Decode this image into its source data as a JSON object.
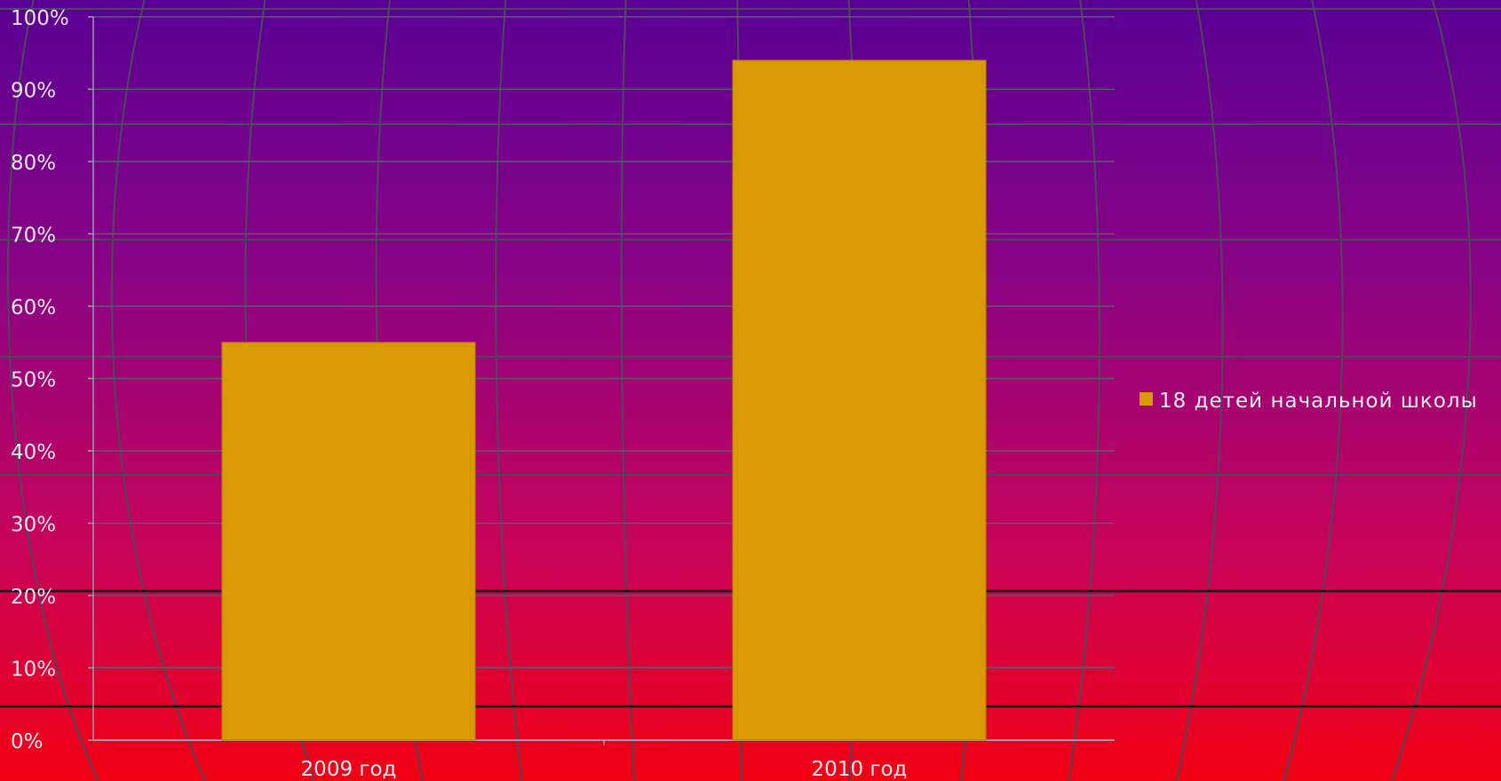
{
  "colors": {
    "bar": "#d99a06",
    "bar_stroke": "#b07a00",
    "background_top": "#5a0095",
    "background_bottom": "#f10012"
  },
  "chart_data": {
    "type": "bar",
    "categories": [
      "2009 год",
      "2010 год"
    ],
    "series": [
      {
        "name": "18 детей начальной школы",
        "values": [
          55,
          94
        ]
      }
    ],
    "ylim": [
      0,
      100
    ],
    "yticks": [
      "0%",
      "10%",
      "20%",
      "30%",
      "40%",
      "50%",
      "60%",
      "70%",
      "80%",
      "90%",
      "100%"
    ],
    "ylabel": "",
    "xlabel": "",
    "title": "",
    "grid": true,
    "legend_position": "right"
  }
}
